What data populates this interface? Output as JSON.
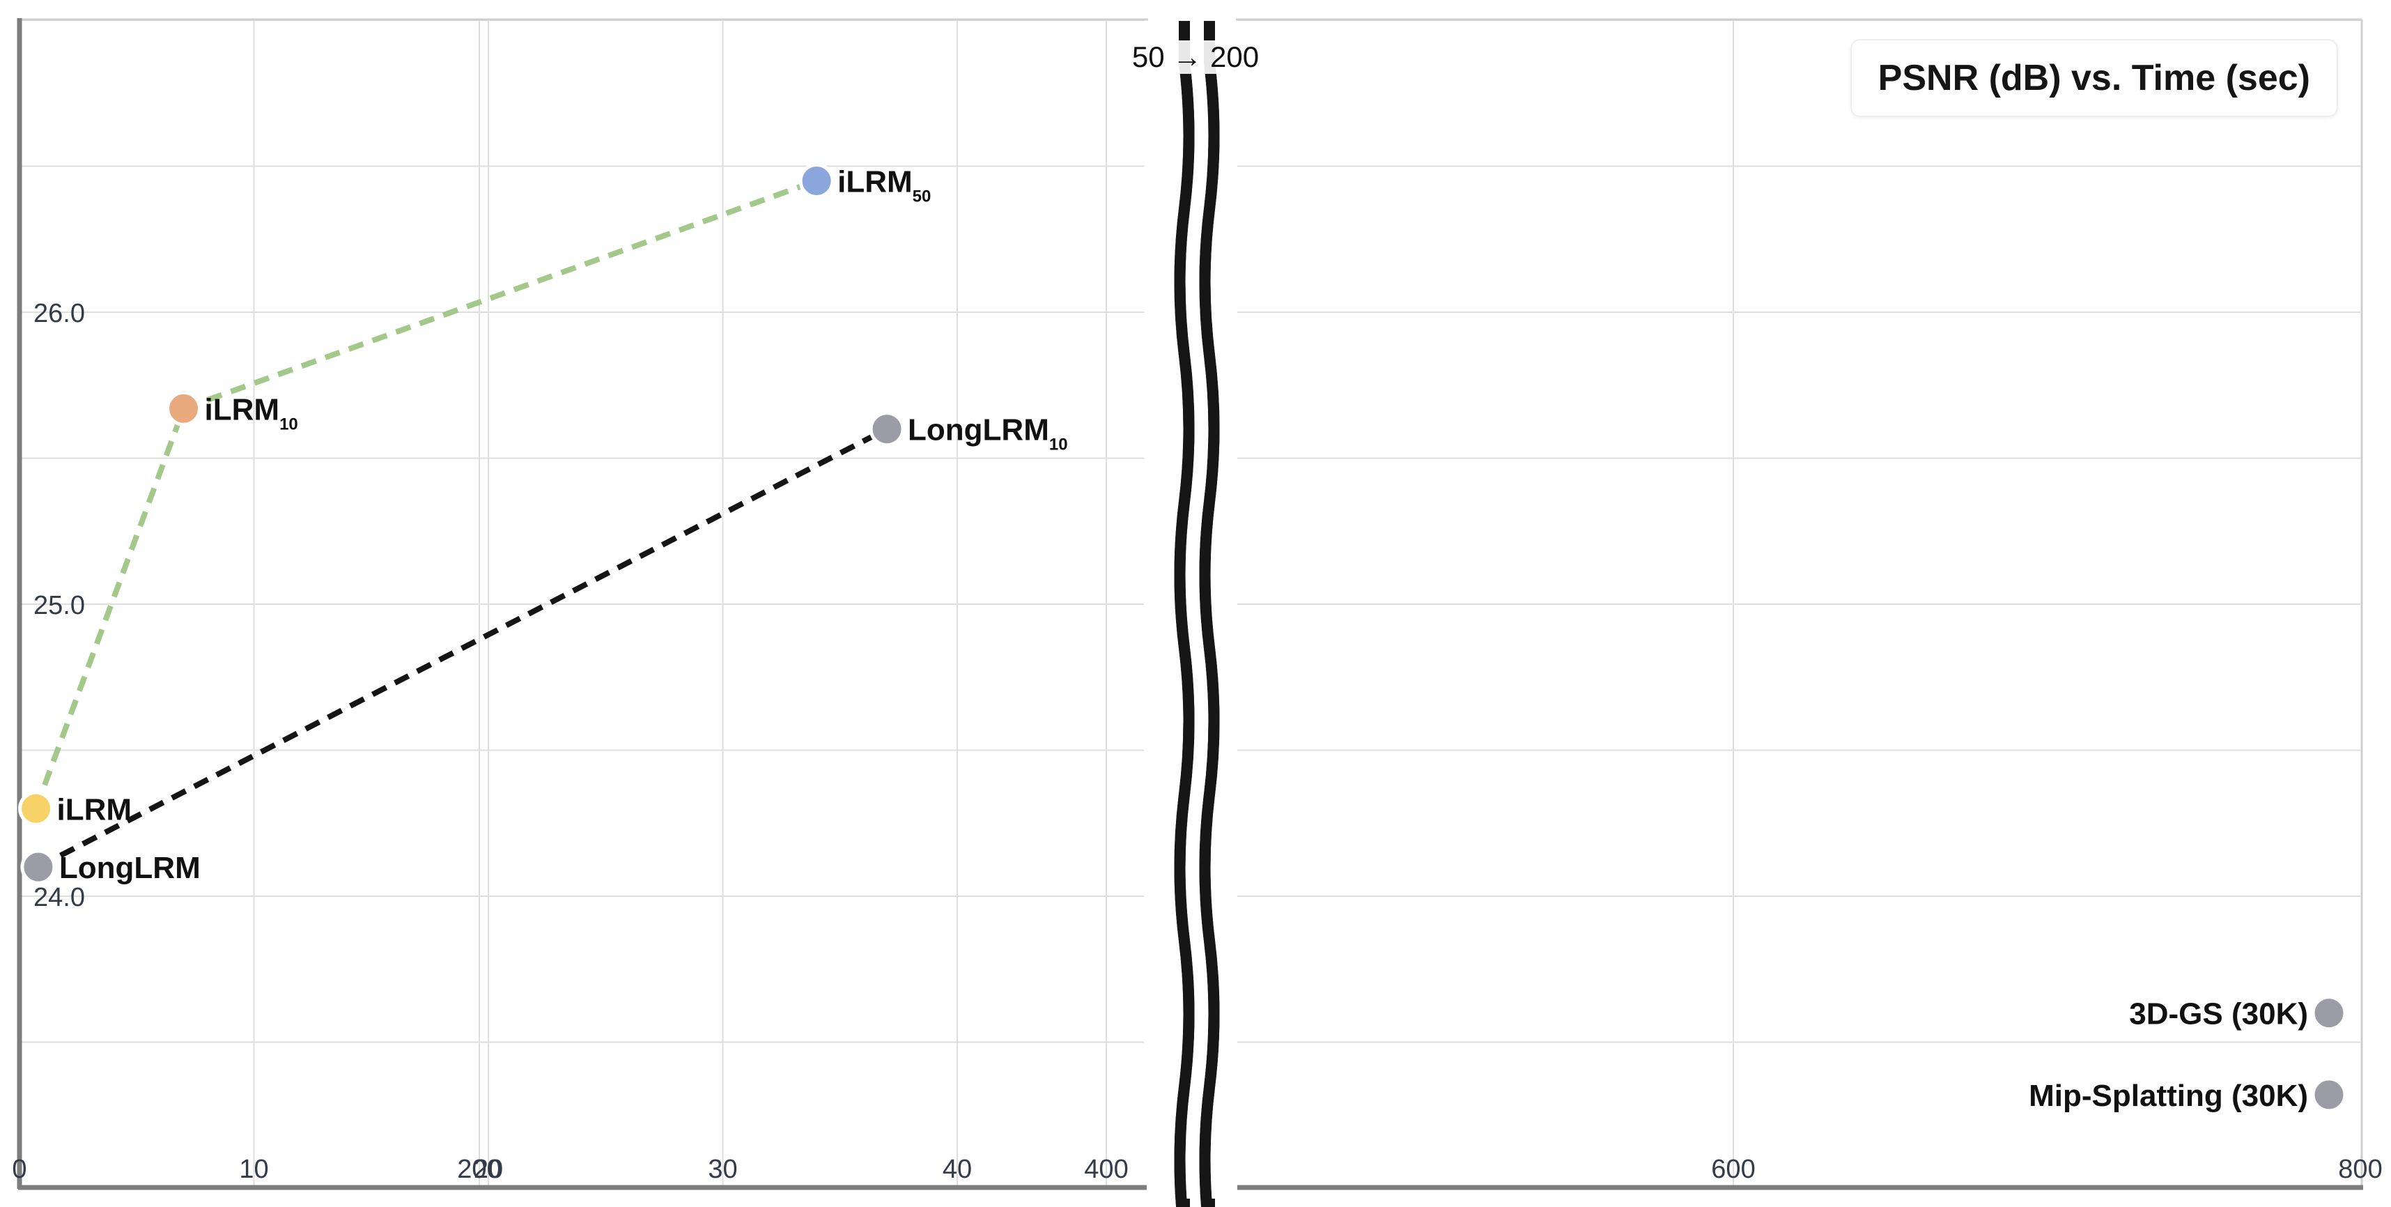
{
  "chart_data": {
    "type": "scatter",
    "title": "PSNR (dB) vs. Time (sec)",
    "axis_break": {
      "label": "50 → 200",
      "from": 50,
      "to": 200
    },
    "x_ticks_left": [
      "0",
      "10",
      "20",
      "30",
      "40"
    ],
    "x_ticks_right": [
      "200",
      "400",
      "600",
      "800"
    ],
    "y_ticks": [
      "24.0",
      "25.0",
      "26.0"
    ],
    "xlim_left": [
      0,
      48
    ],
    "xlim_right": [
      120,
      800
    ],
    "ylim": [
      23.0,
      27.0
    ],
    "grid": true,
    "points": [
      {
        "label": "iLRM",
        "sub": "",
        "x": 0.7,
        "y": 24.3,
        "color": "#f7d266"
      },
      {
        "label": "LongLRM",
        "sub": "",
        "x": 0.8,
        "y": 24.1,
        "color": "#9c9ca6"
      },
      {
        "label": "iLRM",
        "sub": "10",
        "x": 7,
        "y": 25.67,
        "color": "#e8aa7e"
      },
      {
        "label": "iLRM",
        "sub": "50",
        "x": 34,
        "y": 26.45,
        "color": "#8aa6da"
      },
      {
        "label": "LongLRM",
        "sub": "10",
        "x": 37,
        "y": 25.6,
        "color": "#9c9ca6"
      },
      {
        "label": "3D-GS (30K)",
        "sub": "",
        "x": 790,
        "y": 23.6,
        "color": "#9c9ca6"
      },
      {
        "label": "Mip-Splatting (30K)",
        "sub": "",
        "x": 790,
        "y": 23.32,
        "color": "#9c9ca6"
      }
    ],
    "lines": [
      {
        "name": "",
        "color": "#a3c98a",
        "dash": true,
        "x": [
          0.7,
          7,
          34
        ],
        "y": [
          24.3,
          25.67,
          26.45
        ]
      },
      {
        "name": "",
        "color": "#151515",
        "dash": true,
        "x": [
          0.8,
          37
        ],
        "y": [
          24.1,
          25.6
        ]
      }
    ]
  }
}
